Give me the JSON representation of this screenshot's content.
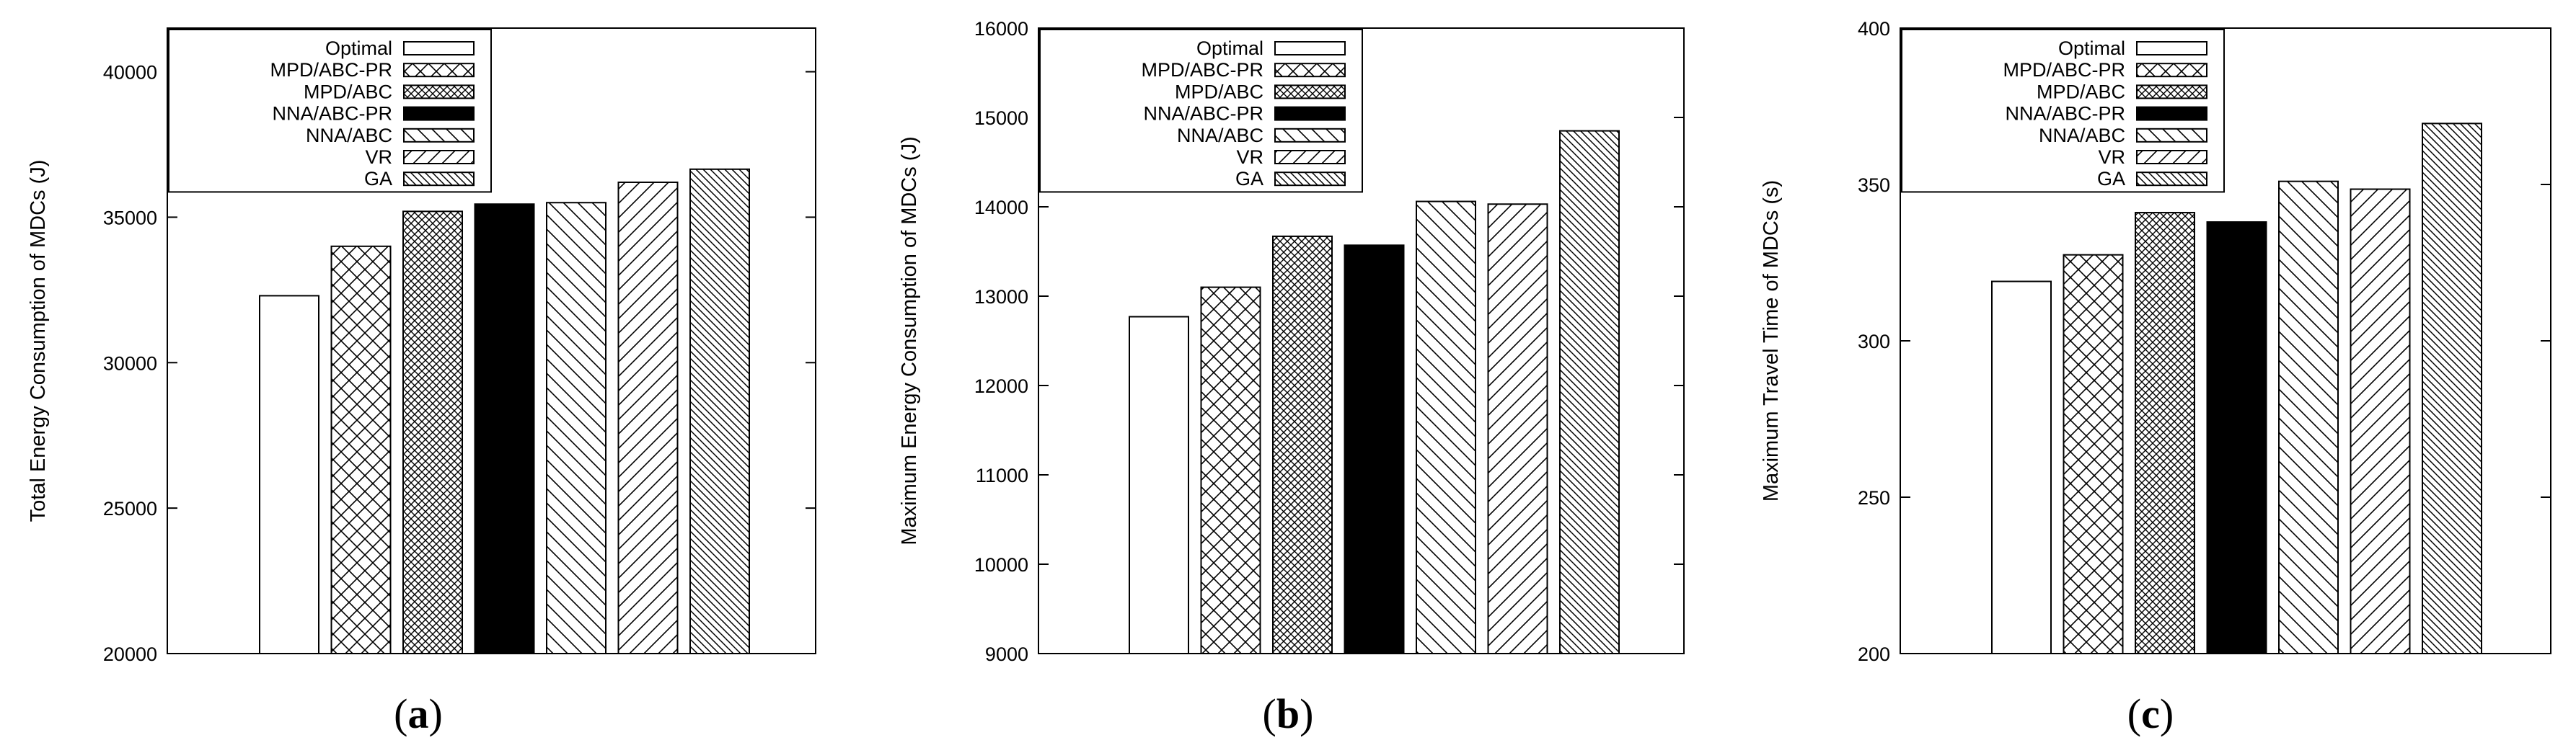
{
  "figure": {
    "series": [
      {
        "name": "Optimal",
        "pattern": "empty",
        "fill": "#ffffff"
      },
      {
        "name": "MPD/ABC-PR",
        "pattern": "crosshatch-coarse",
        "fill": "#ffffff"
      },
      {
        "name": "MPD/ABC",
        "pattern": "crosshatch-fine",
        "fill": "#ffffff"
      },
      {
        "name": "NNA/ABC-PR",
        "pattern": "solid",
        "fill": "#000000"
      },
      {
        "name": "NNA/ABC",
        "pattern": "diagonal-down",
        "fill": "#ffffff"
      },
      {
        "name": "VR",
        "pattern": "diagonal-up",
        "fill": "#ffffff"
      },
      {
        "name": "GA",
        "pattern": "diagonal-down-dense",
        "fill": "#ffffff"
      }
    ]
  },
  "chart_data": [
    {
      "type": "bar",
      "caption_letter": "a",
      "ylabel": "Total Energy Consumption of MDCs (J)",
      "xlabel": "",
      "ylim": [
        20000,
        41500
      ],
      "yticks": [
        20000,
        25000,
        30000,
        35000,
        40000
      ],
      "legend_position": "top-left",
      "series_names": [
        "Optimal",
        "MPD/ABC-PR",
        "MPD/ABC",
        "NNA/ABC-PR",
        "NNA/ABC",
        "VR",
        "GA"
      ],
      "values": [
        32300,
        34000,
        35200,
        35450,
        35500,
        36200,
        36650
      ]
    },
    {
      "type": "bar",
      "caption_letter": "b",
      "ylabel": "Maximum Energy Consumption of MDCs (J)",
      "xlabel": "",
      "ylim": [
        9000,
        16000
      ],
      "yticks": [
        9000,
        10000,
        11000,
        12000,
        13000,
        14000,
        15000,
        16000
      ],
      "legend_position": "top-left",
      "series_names": [
        "Optimal",
        "MPD/ABC-PR",
        "MPD/ABC",
        "NNA/ABC-PR",
        "NNA/ABC",
        "VR",
        "GA"
      ],
      "values": [
        12770,
        13100,
        13670,
        13570,
        14060,
        14030,
        14850
      ]
    },
    {
      "type": "bar",
      "caption_letter": "c",
      "ylabel": "Maximum Travel Time of MDCs (s)",
      "xlabel": "",
      "ylim": [
        200,
        400
      ],
      "yticks": [
        200,
        250,
        300,
        350,
        400
      ],
      "legend_position": "top-left",
      "series_names": [
        "Optimal",
        "MPD/ABC-PR",
        "MPD/ABC",
        "NNA/ABC-PR",
        "NNA/ABC",
        "VR",
        "GA"
      ],
      "values": [
        319,
        327.5,
        341,
        338,
        351,
        348.5,
        369.5
      ]
    }
  ]
}
